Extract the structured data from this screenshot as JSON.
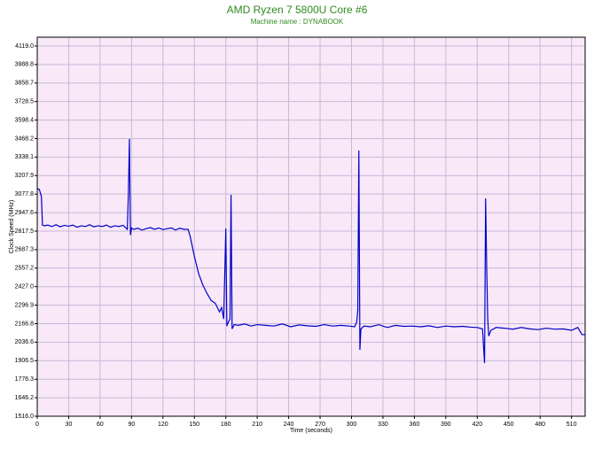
{
  "chart_data": {
    "type": "line",
    "title": "AMD Ryzen 7 5800U Core #6",
    "subtitle": "Machine name : DYNABOOK",
    "x_label": "Time (seconds)",
    "y_label": "Clock Speed (MHz)",
    "xlim": [
      0,
      523
    ],
    "ylim": [
      1516,
      4181
    ],
    "xticks": [
      0,
      30,
      60,
      90,
      120,
      150,
      180,
      210,
      240,
      270,
      300,
      330,
      360,
      390,
      420,
      450,
      480,
      510
    ],
    "yticks": [
      {
        "value": 1516,
        "label": "1516.0"
      },
      1646.2,
      1776.3,
      1906.5,
      2036.6,
      2166.8,
      2296.9,
      {
        "value": 2427,
        "label": "2427.0"
      },
      2557.2,
      2687.3,
      2817.5,
      2947.6,
      3077.8,
      3207.9,
      3338.1,
      3468.2,
      3598.4,
      3728.5,
      3858.7,
      3988.8,
      {
        "value": 4119,
        "label": "4119.0"
      }
    ],
    "grid": true,
    "series": [
      {
        "name": "Core #6",
        "color": "#0000c8",
        "x": [
          0,
          2,
          4,
          5,
          7,
          10,
          14,
          18,
          22,
          26,
          30,
          34,
          38,
          42,
          46,
          50,
          54,
          58,
          62,
          66,
          70,
          74,
          78,
          82,
          86,
          87,
          88,
          89,
          90,
          92,
          96,
          100,
          104,
          108,
          112,
          116,
          120,
          124,
          128,
          132,
          136,
          140,
          144,
          146,
          150,
          154,
          158,
          162,
          166,
          170,
          174,
          176,
          178,
          180,
          181,
          182,
          184,
          185,
          186,
          188,
          192,
          198,
          204,
          210,
          218,
          226,
          234,
          242,
          250,
          258,
          266,
          274,
          282,
          290,
          298,
          303,
          305,
          306,
          307,
          308,
          309,
          312,
          318,
          326,
          334,
          342,
          350,
          358,
          366,
          374,
          382,
          390,
          398,
          406,
          414,
          420,
          425,
          427,
          428,
          429,
          430,
          431,
          433,
          438,
          446,
          454,
          462,
          470,
          478,
          486,
          494,
          502,
          510,
          516,
          520,
          523
        ],
        "values": [
          3116,
          3110,
          3060,
          2860,
          2855,
          2860,
          2850,
          2862,
          2848,
          2858,
          2852,
          2860,
          2845,
          2855,
          2850,
          2862,
          2848,
          2855,
          2850,
          2860,
          2845,
          2855,
          2850,
          2858,
          2830,
          3080,
          3465,
          2790,
          2840,
          2830,
          2838,
          2825,
          2835,
          2842,
          2830,
          2840,
          2828,
          2835,
          2840,
          2825,
          2838,
          2830,
          2830,
          2780,
          2640,
          2520,
          2440,
          2380,
          2330,
          2310,
          2250,
          2280,
          2200,
          2836,
          2150,
          2170,
          2200,
          3073,
          2130,
          2160,
          2155,
          2165,
          2150,
          2160,
          2155,
          2150,
          2165,
          2145,
          2158,
          2152,
          2148,
          2160,
          2150,
          2155,
          2150,
          2145,
          2180,
          2260,
          3384,
          1983,
          2130,
          2150,
          2145,
          2160,
          2140,
          2155,
          2148,
          2150,
          2145,
          2152,
          2140,
          2150,
          2145,
          2148,
          2142,
          2140,
          2130,
          1890,
          3048,
          2574,
          2200,
          2080,
          2120,
          2140,
          2135,
          2128,
          2140,
          2130,
          2125,
          2135,
          2128,
          2130,
          2120,
          2140,
          2090,
          2090
        ]
      }
    ]
  }
}
